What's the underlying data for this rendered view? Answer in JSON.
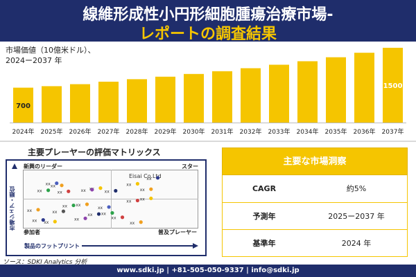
{
  "header": {
    "title_line1": "線維形成性小円形細胞腫瘍治療市場-",
    "title_line2": "レポートの調査結果"
  },
  "bar_chart": {
    "caption_line1": "市場価値（10億米ドル）、",
    "caption_line2": "2024ー2037 年"
  },
  "chart_data": [
    {
      "type": "bar",
      "categories": [
        "2024年",
        "2025年",
        "2026年",
        "2027年",
        "2028年",
        "2029年",
        "2030年",
        "2031年",
        "2032年",
        "2033年",
        "2034年",
        "2035年",
        "2036年",
        "2037年"
      ],
      "values": [
        700,
        730,
        770,
        820,
        870,
        920,
        975,
        1030,
        1090,
        1160,
        1230,
        1310,
        1400,
        1500
      ],
      "data_labels": {
        "first": "700",
        "last": "1500"
      },
      "title": "",
      "xlabel": "",
      "ylabel": "",
      "bar_color": "#f5c500",
      "grid": false
    },
    {
      "type": "scatter",
      "title": "主要プレーヤーの評価マトリックス",
      "xlabel": "製品のフットプリント",
      "ylabel": "市場シェア・順位",
      "quadrants": [
        "新興のリーダー",
        "スター",
        "参加者",
        "普及プレーヤー"
      ],
      "highlight_label": "Eisai Co.Ltd",
      "point_label": "xx",
      "points": [
        {
          "x": 0.78,
          "y": 0.9,
          "color": "#2e3a8c"
        },
        {
          "x": 0.66,
          "y": 0.79,
          "color": "#f5c500"
        },
        {
          "x": 0.44,
          "y": 0.71,
          "color": "#f5c500"
        },
        {
          "x": 0.18,
          "y": 0.8,
          "color": "#4b5fbf"
        },
        {
          "x": 0.21,
          "y": 0.76,
          "color": "#f0a020"
        },
        {
          "x": 0.13,
          "y": 0.67,
          "color": "#2ca24a"
        },
        {
          "x": 0.25,
          "y": 0.65,
          "color": "#d04040"
        },
        {
          "x": 0.39,
          "y": 0.68,
          "color": "#8e44ad"
        },
        {
          "x": 0.53,
          "y": 0.66,
          "color": "#1f2d6b"
        },
        {
          "x": 0.74,
          "y": 0.69,
          "color": "#f0a020"
        },
        {
          "x": 0.66,
          "y": 0.48,
          "color": "#d04040"
        },
        {
          "x": 0.74,
          "y": 0.52,
          "color": "#f5c500"
        },
        {
          "x": 0.36,
          "y": 0.41,
          "color": "#f0a020"
        },
        {
          "x": 0.28,
          "y": 0.39,
          "color": "#2ca24a"
        },
        {
          "x": 0.49,
          "y": 0.36,
          "color": "#4b5fbf"
        },
        {
          "x": 0.07,
          "y": 0.31,
          "color": "#f0a020"
        },
        {
          "x": 0.22,
          "y": 0.28,
          "color": "#555555"
        },
        {
          "x": 0.51,
          "y": 0.25,
          "color": "#2ca24a"
        },
        {
          "x": 0.43,
          "y": 0.23,
          "color": "#1f2d6b"
        },
        {
          "x": 0.57,
          "y": 0.17,
          "color": "#d04040"
        },
        {
          "x": 0.35,
          "y": 0.15,
          "color": "#8e44ad"
        },
        {
          "x": 0.1,
          "y": 0.12,
          "color": "#2e3a8c"
        },
        {
          "x": 0.17,
          "y": 0.09,
          "color": "#f5c500"
        },
        {
          "x": 0.68,
          "y": 0.08,
          "color": "#f0a020"
        }
      ]
    }
  ],
  "matrix": {
    "title": "主要プレーヤーの評価マトリックス",
    "quad_top_left": "新興のリーダー",
    "quad_top_right": "スター",
    "quad_bottom_left": "参加者",
    "quad_bottom_right": "普及プレーヤー",
    "y_axis": "市場シェア・順位",
    "x_axis": "製品のフットプリント",
    "highlight": "Eisai Co.Ltd"
  },
  "insights": {
    "heading": "主要な市場洞察",
    "rows": [
      {
        "label": "CAGR",
        "value": "約5%"
      },
      {
        "label": "予測年",
        "value": "2025ー2037 年"
      },
      {
        "label": "基準年",
        "value": "2024 年"
      }
    ]
  },
  "source": "ソース：SDKI Analytics 分析",
  "footer": "www.sdki.jp | +81-505-050-9337 | info@sdki.jp",
  "colors": {
    "navy": "#1f2d6b",
    "accent": "#f5c500"
  }
}
